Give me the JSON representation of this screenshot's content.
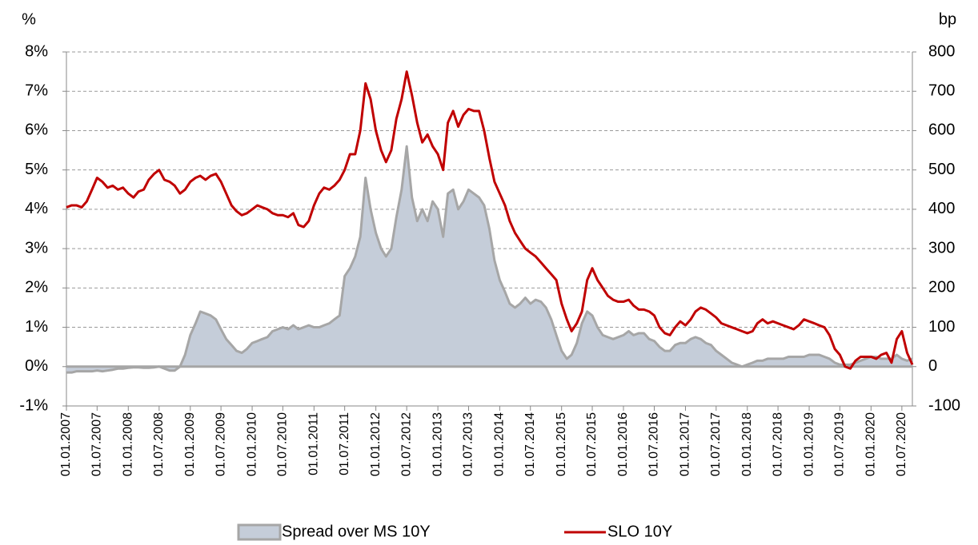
{
  "chart_data": {
    "type": "line",
    "y_label": "%",
    "y2_label": "bp",
    "xlim": [
      "01.01.2007",
      "01.09.2020"
    ],
    "xticks": [
      "01.01.2007",
      "01.07.2007",
      "01.01.2008",
      "01.07.2008",
      "01.01.2009",
      "01.07.2009",
      "01.01.2010",
      "01.07.2010",
      "01.01.2011",
      "01.07.2011",
      "01.01.2012",
      "01.07.2012",
      "01.01.2013",
      "01.07.2013",
      "01.01.2014",
      "01.07.2014",
      "01.01.2015",
      "01.07.2015",
      "01.01.2016",
      "01.07.2016",
      "01.01.2017",
      "01.07.2017",
      "01.01.2018",
      "01.07.2018",
      "01.01.2019",
      "01.07.2019",
      "01.01.2020",
      "01.07.2020"
    ],
    "ylim": [
      -1,
      8
    ],
    "yticks": [
      {
        "value": -1,
        "label": "-1%"
      },
      {
        "value": 0,
        "label": "0%"
      },
      {
        "value": 1,
        "label": "1%"
      },
      {
        "value": 2,
        "label": "2%"
      },
      {
        "value": 3,
        "label": "3%"
      },
      {
        "value": 4,
        "label": "4%"
      },
      {
        "value": 5,
        "label": "5%"
      },
      {
        "value": 6,
        "label": "6%"
      },
      {
        "value": 7,
        "label": "7%"
      },
      {
        "value": 8,
        "label": "8%"
      }
    ],
    "y2lim": [
      -100,
      800
    ],
    "y2ticks": [
      -100,
      0,
      100,
      200,
      300,
      400,
      500,
      600,
      700,
      800
    ],
    "grid": true,
    "legend": "bottom",
    "x": [
      "01.01.2007",
      "01.02.2007",
      "01.03.2007",
      "01.04.2007",
      "01.05.2007",
      "01.06.2007",
      "01.07.2007",
      "01.08.2007",
      "01.09.2007",
      "01.10.2007",
      "01.11.2007",
      "01.12.2007",
      "01.01.2008",
      "01.02.2008",
      "01.03.2008",
      "01.04.2008",
      "01.05.2008",
      "01.06.2008",
      "01.07.2008",
      "01.08.2008",
      "01.09.2008",
      "01.10.2008",
      "01.11.2008",
      "01.12.2008",
      "01.01.2009",
      "01.02.2009",
      "01.03.2009",
      "01.04.2009",
      "01.05.2009",
      "01.06.2009",
      "01.07.2009",
      "01.08.2009",
      "01.09.2009",
      "01.10.2009",
      "01.11.2009",
      "01.12.2009",
      "01.01.2010",
      "01.02.2010",
      "01.03.2010",
      "01.04.2010",
      "01.05.2010",
      "01.06.2010",
      "01.07.2010",
      "01.08.2010",
      "01.09.2010",
      "01.10.2010",
      "01.11.2010",
      "01.12.2010",
      "01.01.2011",
      "01.02.2011",
      "01.03.2011",
      "01.04.2011",
      "01.05.2011",
      "01.06.2011",
      "01.07.2011",
      "01.08.2011",
      "01.09.2011",
      "01.10.2011",
      "01.11.2011",
      "01.12.2011",
      "01.01.2012",
      "01.02.2012",
      "01.03.2012",
      "01.04.2012",
      "01.05.2012",
      "01.06.2012",
      "01.07.2012",
      "01.08.2012",
      "01.09.2012",
      "01.10.2012",
      "01.11.2012",
      "01.12.2012",
      "01.01.2013",
      "01.02.2013",
      "01.03.2013",
      "01.04.2013",
      "01.05.2013",
      "01.06.2013",
      "01.07.2013",
      "01.08.2013",
      "01.09.2013",
      "01.10.2013",
      "01.11.2013",
      "01.12.2013",
      "01.01.2014",
      "01.02.2014",
      "01.03.2014",
      "01.04.2014",
      "01.05.2014",
      "01.06.2014",
      "01.07.2014",
      "01.08.2014",
      "01.09.2014",
      "01.10.2014",
      "01.11.2014",
      "01.12.2014",
      "01.01.2015",
      "01.02.2015",
      "01.03.2015",
      "01.04.2015",
      "01.05.2015",
      "01.06.2015",
      "01.07.2015",
      "01.08.2015",
      "01.09.2015",
      "01.10.2015",
      "01.11.2015",
      "01.12.2015",
      "01.01.2016",
      "01.02.2016",
      "01.03.2016",
      "01.04.2016",
      "01.05.2016",
      "01.06.2016",
      "01.07.2016",
      "01.08.2016",
      "01.09.2016",
      "01.10.2016",
      "01.11.2016",
      "01.12.2016",
      "01.01.2017",
      "01.02.2017",
      "01.03.2017",
      "01.04.2017",
      "01.05.2017",
      "01.06.2017",
      "01.07.2017",
      "01.08.2017",
      "01.09.2017",
      "01.10.2017",
      "01.11.2017",
      "01.12.2017",
      "01.01.2018",
      "01.02.2018",
      "01.03.2018",
      "01.04.2018",
      "01.05.2018",
      "01.06.2018",
      "01.07.2018",
      "01.08.2018",
      "01.09.2018",
      "01.10.2018",
      "01.11.2018",
      "01.12.2018",
      "01.01.2019",
      "01.02.2019",
      "01.03.2019",
      "01.04.2019",
      "01.05.2019",
      "01.06.2019",
      "01.07.2019",
      "01.08.2019",
      "01.09.2019",
      "01.10.2019",
      "01.11.2019",
      "01.12.2019",
      "01.01.2020",
      "01.02.2020",
      "01.03.2020",
      "01.04.2020",
      "01.05.2020",
      "01.06.2020",
      "01.07.2020",
      "01.08.2020",
      "01.09.2020"
    ],
    "series": [
      {
        "name": "Spread over MS 10Y",
        "type": "area",
        "axis": "y2",
        "color": "#c5cdd9",
        "edge_color": "#a6a6a6",
        "values": [
          -15,
          -15,
          -12,
          -12,
          -12,
          -12,
          -10,
          -12,
          -10,
          -8,
          -5,
          -5,
          -3,
          -2,
          -2,
          -3,
          -3,
          -2,
          0,
          -5,
          -10,
          -10,
          0,
          30,
          80,
          110,
          140,
          135,
          130,
          120,
          95,
          70,
          55,
          40,
          35,
          45,
          60,
          65,
          70,
          75,
          90,
          95,
          100,
          95,
          105,
          95,
          100,
          105,
          100,
          100,
          105,
          110,
          120,
          130,
          230,
          250,
          280,
          330,
          480,
          400,
          340,
          300,
          280,
          300,
          380,
          450,
          560,
          430,
          370,
          400,
          370,
          420,
          400,
          330,
          440,
          450,
          400,
          420,
          450,
          440,
          430,
          410,
          350,
          270,
          220,
          190,
          160,
          150,
          160,
          175,
          160,
          170,
          165,
          150,
          120,
          80,
          40,
          20,
          30,
          60,
          110,
          140,
          130,
          100,
          80,
          75,
          70,
          75,
          80,
          90,
          80,
          85,
          85,
          70,
          65,
          50,
          40,
          40,
          55,
          60,
          60,
          70,
          75,
          70,
          60,
          55,
          40,
          30,
          20,
          10,
          5,
          0,
          5,
          10,
          15,
          15,
          20,
          20,
          20,
          20,
          25,
          25,
          25,
          25,
          30,
          30,
          30,
          25,
          20,
          10,
          5,
          5,
          5,
          10,
          15,
          20,
          25,
          25,
          20,
          20,
          20,
          30,
          20,
          15,
          20
        ]
      },
      {
        "name": "SLO 10Y",
        "type": "line",
        "color": "#c00000",
        "values": [
          4.05,
          4.1,
          4.1,
          4.05,
          4.2,
          4.5,
          4.8,
          4.7,
          4.55,
          4.6,
          4.5,
          4.55,
          4.4,
          4.3,
          4.45,
          4.5,
          4.75,
          4.9,
          5.0,
          4.75,
          4.7,
          4.6,
          4.4,
          4.5,
          4.7,
          4.8,
          4.85,
          4.75,
          4.85,
          4.9,
          4.7,
          4.4,
          4.1,
          3.95,
          3.85,
          3.9,
          4.0,
          4.1,
          4.05,
          4.0,
          3.9,
          3.85,
          3.85,
          3.8,
          3.9,
          3.6,
          3.55,
          3.7,
          4.1,
          4.4,
          4.55,
          4.5,
          4.6,
          4.75,
          5.0,
          5.4,
          5.4,
          6.0,
          7.2,
          6.8,
          6.0,
          5.5,
          5.2,
          5.5,
          6.3,
          6.8,
          7.5,
          6.9,
          6.2,
          5.7,
          5.9,
          5.6,
          5.4,
          5.0,
          6.2,
          6.5,
          6.1,
          6.4,
          6.55,
          6.5,
          6.5,
          6.0,
          5.3,
          4.7,
          4.4,
          4.1,
          3.7,
          3.4,
          3.2,
          3.0,
          2.9,
          2.8,
          2.65,
          2.5,
          2.35,
          2.2,
          1.6,
          1.2,
          0.9,
          1.1,
          1.4,
          2.2,
          2.5,
          2.2,
          2.0,
          1.8,
          1.7,
          1.65,
          1.65,
          1.7,
          1.55,
          1.45,
          1.45,
          1.4,
          1.3,
          1.0,
          0.85,
          0.8,
          1.0,
          1.15,
          1.05,
          1.2,
          1.4,
          1.5,
          1.45,
          1.35,
          1.25,
          1.1,
          1.05,
          1.0,
          0.95,
          0.9,
          0.85,
          0.9,
          1.1,
          1.2,
          1.1,
          1.15,
          1.1,
          1.05,
          1.0,
          0.95,
          1.05,
          1.2,
          1.15,
          1.1,
          1.05,
          1.0,
          0.8,
          0.45,
          0.3,
          0.0,
          -0.05,
          0.15,
          0.25,
          0.25,
          0.25,
          0.2,
          0.3,
          0.35,
          0.1,
          0.7,
          0.9,
          0.35,
          0.05
        ]
      }
    ]
  }
}
